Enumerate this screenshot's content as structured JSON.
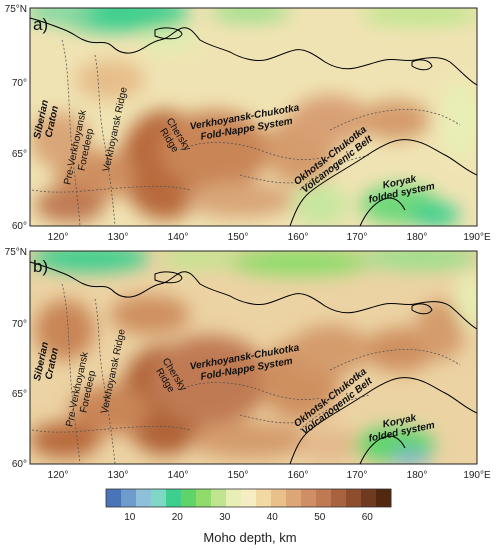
{
  "panels": [
    {
      "tag": "a)",
      "lat_labels": [
        "75°N",
        "70°",
        "65°",
        "60°"
      ],
      "lon_labels": [
        "120°",
        "130°",
        "140°",
        "150°",
        "160°",
        "170°",
        "180°",
        "190°E"
      ],
      "regions": [
        {
          "lines": [
            "Siberian",
            "Craton"
          ],
          "style": "bold"
        },
        {
          "lines": [
            "Pre-Verkhoyansk",
            "Foredeep"
          ],
          "style": "plain"
        },
        {
          "lines": [
            "Verkhoyansk Ridge"
          ],
          "style": "plain"
        },
        {
          "lines": [
            "Chersky",
            "Ridge"
          ],
          "style": "plain"
        },
        {
          "lines": [
            "Verkhoyansk-Chukotka",
            "Fold-Nappe System"
          ],
          "style": "bold"
        },
        {
          "lines": [
            "Okhotsk-Chukotka",
            "Volcanogenic Belt"
          ],
          "style": "bold"
        },
        {
          "lines": [
            "Koryak",
            "folded system"
          ],
          "style": "bold"
        }
      ]
    },
    {
      "tag": "b)",
      "lat_labels": [
        "75°N",
        "70°",
        "65°",
        "60°"
      ],
      "lon_labels": [
        "120°",
        "130°",
        "140°",
        "150°",
        "160°",
        "170°",
        "180°",
        "190°E"
      ],
      "regions": [
        {
          "lines": [
            "Siberian",
            "Craton"
          ],
          "style": "bold"
        },
        {
          "lines": [
            "Pre-Verkhoyansk",
            "Foredeep"
          ],
          "style": "plain"
        },
        {
          "lines": [
            "Verkhoyansk Ridge"
          ],
          "style": "plain"
        },
        {
          "lines": [
            "Chersky",
            "Ridge"
          ],
          "style": "plain"
        },
        {
          "lines": [
            "Verkhoyansk-Chukotka",
            "Fold-Nappe System"
          ],
          "style": "bold"
        },
        {
          "lines": [
            "Okhotsk-Chukotka",
            "Volcanogenic Belt"
          ],
          "style": "bold"
        },
        {
          "lines": [
            "Koryak",
            "folded system"
          ],
          "style": "bold"
        }
      ]
    }
  ],
  "colorbar": {
    "title": "Moho depth, km",
    "ticks": [
      "10",
      "20",
      "30",
      "40",
      "50",
      "60"
    ],
    "tick_values": [
      10,
      20,
      30,
      40,
      50,
      60
    ],
    "range": [
      5,
      65
    ],
    "colors": [
      "#4a74b8",
      "#6f9ccd",
      "#8fc0d9",
      "#7fd8c4",
      "#3ecf8e",
      "#5fd46a",
      "#8fdc6b",
      "#bfe68f",
      "#e8efb6",
      "#f7edc4",
      "#f2d9a2",
      "#e9c08a",
      "#dca677",
      "#cf8e63",
      "#c07a53",
      "#a86240",
      "#8e4e2e",
      "#6f3a1f",
      "#52280f"
    ]
  },
  "colors": {
    "coastline": "#000000",
    "boundary": "#555555",
    "frame": "#222222",
    "water_high": "#2fc97a",
    "moho_deep": "#b86a3e",
    "moho_mid": "#e3b98c",
    "moho_shallow": "#f2e6b5"
  }
}
